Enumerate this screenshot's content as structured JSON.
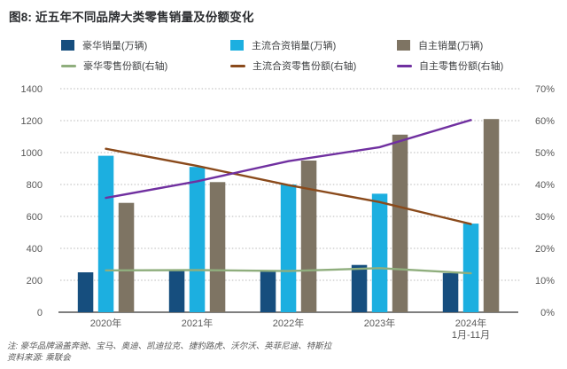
{
  "title": "图8: 近五年不同品牌大类零售销量及份额变化",
  "notes": {
    "line1": "注: 豪华品牌涵盖奔驰、宝马、奥迪、凯迪拉克、捷豹路虎、沃尔沃、英菲尼迪、特斯拉",
    "line2": "资料来源: 乘联会"
  },
  "colors": {
    "luxury_bar": "#164e7e",
    "joint_venture_bar": "#1cafe0",
    "domestic_bar": "#7e7463",
    "luxury_line": "#8fae7d",
    "joint_venture_line": "#8a4a1b",
    "domestic_line": "#7030a0",
    "axis_text": "#595959",
    "gridline": "#b9b9b9",
    "axis_line": "#7f7f7f"
  },
  "chart_data": {
    "type": "bar+line combo (bars on left axis, lines on right axis)",
    "title": "图8: 近五年不同品牌大类零售销量及份额变化",
    "categories": [
      "2020年",
      "2021年",
      "2022年",
      "2023年",
      "2024年\n1月-11月"
    ],
    "bar_series": [
      {
        "name": "豪华销量(万辆)",
        "color": "#164e7e",
        "axis": "left",
        "values": [
          250,
          263,
          258,
          296,
          245
        ]
      },
      {
        "name": "主流合资销量(万辆)",
        "color": "#1cafe0",
        "axis": "left",
        "values": [
          980,
          910,
          800,
          742,
          555
        ]
      },
      {
        "name": "自主销量(万辆)",
        "color": "#7e7463",
        "axis": "left",
        "values": [
          685,
          815,
          950,
          1112,
          1210
        ]
      }
    ],
    "line_series": [
      {
        "name": "豪华零售份额(右轴)",
        "color": "#8fae7d",
        "axis": "right",
        "values": [
          13.1,
          13.2,
          12.9,
          13.8,
          12.2
        ]
      },
      {
        "name": "主流合资零售份额(右轴)",
        "color": "#8a4a1b",
        "axis": "right",
        "values": [
          51.2,
          45.8,
          39.8,
          34.5,
          27.6
        ]
      },
      {
        "name": "自主零售份额(右轴)",
        "color": "#7030a0",
        "axis": "right",
        "values": [
          35.8,
          41.0,
          47.3,
          51.7,
          60.2
        ]
      }
    ],
    "left_axis": {
      "min": 0,
      "max": 1400,
      "step": 200,
      "ticks": [
        "0",
        "200",
        "400",
        "600",
        "800",
        "1000",
        "1200",
        "1400"
      ]
    },
    "right_axis": {
      "min": 0,
      "max": 70,
      "step": 10,
      "ticks": [
        "0%",
        "10%",
        "20%",
        "30%",
        "40%",
        "50%",
        "60%",
        "70%"
      ]
    },
    "grid": "dotted horizontal, shared left/right levels",
    "legend_position": "top, two rows (bars row 1, lines row 2)"
  }
}
